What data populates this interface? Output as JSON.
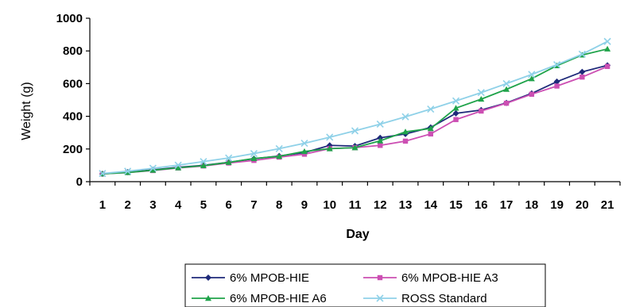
{
  "chart_data": {
    "type": "line",
    "title": "",
    "xlabel": "Day",
    "ylabel": "Weight (g)",
    "ylim": [
      0,
      1000
    ],
    "yticks": [
      0,
      200,
      400,
      600,
      800,
      1000
    ],
    "categories": [
      "1",
      "2",
      "3",
      "4",
      "5",
      "6",
      "7",
      "8",
      "9",
      "10",
      "11",
      "12",
      "13",
      "14",
      "15",
      "16",
      "17",
      "18",
      "19",
      "20",
      "21"
    ],
    "grid": false,
    "legend_position": "bottom",
    "series": [
      {
        "name": "6% MPOB-HIE",
        "color": "#1f2a7a",
        "marker": "diamond",
        "values": [
          48,
          58,
          72,
          88,
          100,
          118,
          140,
          157,
          178,
          222,
          218,
          268,
          292,
          332,
          418,
          438,
          482,
          540,
          612,
          672,
          712
        ]
      },
      {
        "name": "6% MPOB-HIE A3",
        "color": "#cc4fb3",
        "marker": "square",
        "values": [
          48,
          56,
          68,
          84,
          96,
          114,
          130,
          150,
          168,
          202,
          208,
          222,
          248,
          292,
          380,
          432,
          480,
          535,
          585,
          640,
          705
        ]
      },
      {
        "name": "6% MPOB-HIE A6",
        "color": "#1fa34a",
        "marker": "triangle",
        "values": [
          48,
          56,
          70,
          85,
          98,
          118,
          142,
          155,
          185,
          202,
          208,
          250,
          305,
          325,
          450,
          505,
          565,
          630,
          710,
          775,
          812
        ]
      },
      {
        "name": "ROSS Standard",
        "color": "#8fd1e8",
        "marker": "x",
        "values": [
          50,
          64,
          82,
          101,
          123,
          145,
          172,
          202,
          235,
          272,
          311,
          352,
          397,
          444,
          494,
          545,
          600,
          656,
          716,
          780,
          858
        ]
      }
    ]
  }
}
